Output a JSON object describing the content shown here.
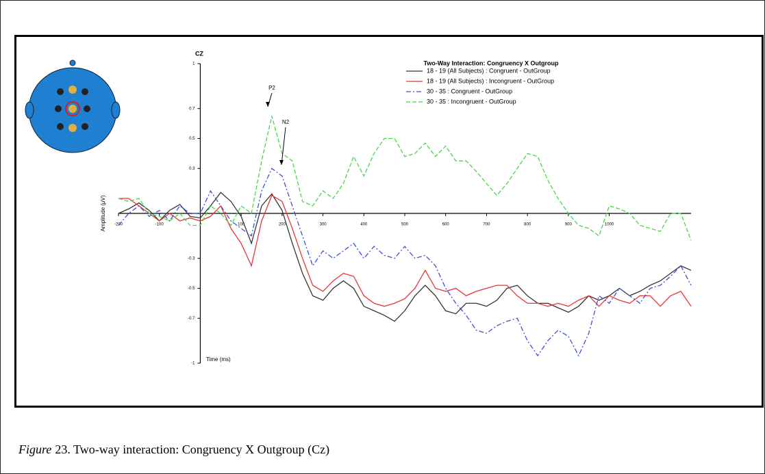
{
  "chart_data": {
    "type": "line",
    "title": "CZ",
    "legend_title": "Two-Way Interaction: Congruency X Outgroup",
    "x_label": "Time (ms)",
    "y_label": "Amplitude (μV)",
    "x": [
      -200,
      -175,
      -150,
      -125,
      -100,
      -75,
      -50,
      -25,
      0,
      25,
      50,
      75,
      100,
      125,
      150,
      175,
      200,
      225,
      250,
      275,
      300,
      325,
      350,
      375,
      400,
      425,
      450,
      475,
      500,
      525,
      550,
      575,
      600,
      625,
      650,
      675,
      700,
      725,
      750,
      775,
      800,
      825,
      850,
      875,
      900,
      925,
      950,
      975,
      1000,
      1025,
      1050,
      1075,
      1100,
      1125,
      1150,
      1175,
      1200
    ],
    "series": [
      {
        "name": "18 - 19 (All Subjects) : Congruent - OutGroup",
        "color": "#333333",
        "linestyle": "solid",
        "values": [
          0.0,
          0.03,
          0.07,
          0.02,
          -0.05,
          0.02,
          0.06,
          -0.02,
          -0.03,
          0.05,
          0.14,
          0.08,
          -0.02,
          -0.2,
          0.05,
          0.13,
          0.02,
          -0.2,
          -0.4,
          -0.55,
          -0.58,
          -0.5,
          -0.45,
          -0.5,
          -0.62,
          -0.65,
          -0.68,
          -0.72,
          -0.65,
          -0.55,
          -0.48,
          -0.55,
          -0.65,
          -0.67,
          -0.6,
          -0.6,
          -0.62,
          -0.58,
          -0.5,
          -0.48,
          -0.55,
          -0.6,
          -0.6,
          -0.63,
          -0.66,
          -0.62,
          -0.55,
          -0.58,
          -0.55,
          -0.5,
          -0.55,
          -0.52,
          -0.48,
          -0.45,
          -0.4,
          -0.35,
          -0.38
        ]
      },
      {
        "name": "18 - 19 (All Subjects) : Incongruent - OutGroup",
        "color": "#e8333a",
        "linestyle": "solid",
        "values": [
          0.1,
          0.1,
          0.05,
          0.0,
          -0.05,
          0.0,
          -0.05,
          -0.03,
          -0.05,
          -0.02,
          0.05,
          -0.1,
          -0.2,
          -0.35,
          -0.05,
          0.12,
          0.08,
          -0.1,
          -0.3,
          -0.48,
          -0.52,
          -0.45,
          -0.4,
          -0.42,
          -0.55,
          -0.6,
          -0.62,
          -0.6,
          -0.57,
          -0.5,
          -0.38,
          -0.5,
          -0.52,
          -0.5,
          -0.55,
          -0.52,
          -0.5,
          -0.48,
          -0.48,
          -0.55,
          -0.6,
          -0.6,
          -0.62,
          -0.6,
          -0.62,
          -0.58,
          -0.55,
          -0.62,
          -0.55,
          -0.58,
          -0.6,
          -0.55,
          -0.55,
          -0.62,
          -0.55,
          -0.52,
          -0.62
        ]
      },
      {
        "name": "30 - 35 : Congruent - OutGroup",
        "color": "#3b4fd8",
        "linestyle": "dashdot",
        "values": [
          -0.08,
          0.0,
          0.05,
          -0.02,
          0.02,
          -0.05,
          0.05,
          0.0,
          0.0,
          0.15,
          0.05,
          -0.05,
          -0.1,
          -0.15,
          0.15,
          0.3,
          0.25,
          0.05,
          -0.15,
          -0.35,
          -0.25,
          -0.3,
          -0.25,
          -0.2,
          -0.3,
          -0.22,
          -0.28,
          -0.3,
          -0.22,
          -0.3,
          -0.28,
          -0.35,
          -0.5,
          -0.6,
          -0.68,
          -0.78,
          -0.8,
          -0.75,
          -0.72,
          -0.7,
          -0.85,
          -0.95,
          -0.85,
          -0.78,
          -0.82,
          -0.95,
          -0.8,
          -0.55,
          -0.6,
          -0.5,
          -0.55,
          -0.6,
          -0.5,
          -0.48,
          -0.42,
          -0.35,
          -0.48
        ]
      },
      {
        "name": "30 - 35 : Incongruent - OutGroup",
        "color": "#44d844",
        "linestyle": "dashed",
        "values": [
          0.1,
          0.08,
          0.1,
          0.0,
          -0.02,
          -0.05,
          0.0,
          -0.08,
          -0.08,
          0.05,
          0.0,
          -0.08,
          0.05,
          0.0,
          0.35,
          0.65,
          0.4,
          0.35,
          0.08,
          0.05,
          0.15,
          0.1,
          0.2,
          0.38,
          0.25,
          0.4,
          0.5,
          0.5,
          0.38,
          0.4,
          0.47,
          0.38,
          0.45,
          0.35,
          0.35,
          0.28,
          0.2,
          0.12,
          0.2,
          0.3,
          0.4,
          0.38,
          0.22,
          0.1,
          0.0,
          -0.08,
          -0.1,
          -0.15,
          0.05,
          0.03,
          0.0,
          -0.08,
          -0.1,
          -0.12,
          0.0,
          0.0,
          -0.18
        ]
      }
    ],
    "annotations": [
      "P2",
      "N2"
    ],
    "xlim": [
      -200,
      1200
    ],
    "xticks": [
      -200,
      -100,
      100,
      200,
      300,
      400,
      500,
      600,
      700,
      800,
      900,
      1000
    ],
    "ylim": [
      -1,
      1
    ],
    "yticks": [
      1,
      0.7,
      0.5,
      0.3,
      -0.3,
      -0.5,
      -0.7,
      -1
    ]
  },
  "caption": {
    "label": "Figure",
    "text": "23. Two-way interaction: Congruency X Outgroup (Cz)"
  }
}
